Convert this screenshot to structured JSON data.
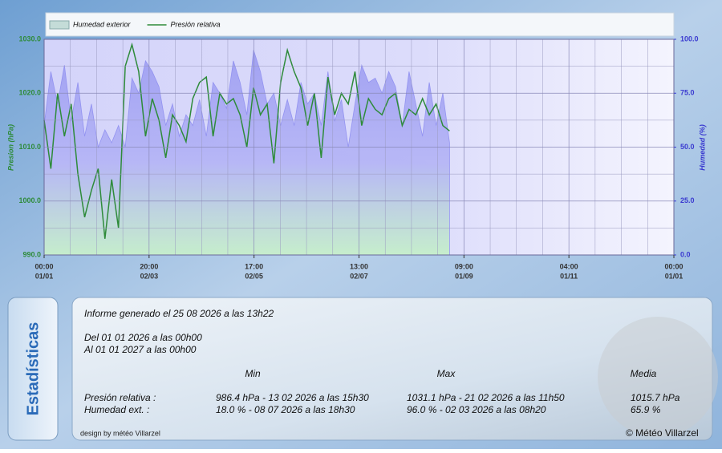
{
  "chart_data": {
    "type": "area-line",
    "x": [
      0,
      94,
      188,
      282,
      376,
      470,
      564,
      658,
      752,
      846,
      940,
      1034,
      1128,
      1222,
      1316,
      1410,
      1504,
      1598,
      1692,
      1786,
      1880,
      1974,
      2068,
      2162,
      2256,
      2350,
      2444,
      2538,
      2632,
      2726,
      2820,
      2914,
      3008,
      3102,
      3196,
      3290,
      3384,
      3478,
      3572,
      3666,
      3760,
      3854,
      3948,
      4042,
      4136,
      4230,
      4324,
      4418,
      4512,
      4606,
      4700,
      4794,
      4888,
      4982,
      5076,
      5170,
      5264,
      5358,
      5452,
      5546,
      5640
    ],
    "series": [
      {
        "name": "Humedad exterior",
        "color": "#8c8cf0",
        "axis": "y2",
        "values": [
          60,
          85,
          70,
          88,
          62,
          80,
          55,
          70,
          50,
          58,
          52,
          60,
          50,
          82,
          75,
          90,
          85,
          78,
          60,
          70,
          55,
          65,
          60,
          72,
          55,
          80,
          75,
          68,
          90,
          80,
          65,
          95,
          85,
          70,
          75,
          60,
          72,
          60,
          80,
          70,
          75,
          60,
          85,
          62,
          72,
          50,
          70,
          88,
          80,
          82,
          75,
          85,
          78,
          60,
          85,
          70,
          55,
          80,
          60,
          75,
          52
        ]
      },
      {
        "name": "Presión relativa",
        "color": "#2e8b3a",
        "values": [
          1015,
          1006,
          1020,
          1012,
          1018,
          1005,
          997,
          1002,
          1006,
          993,
          1004,
          995,
          1025,
          1029,
          1024,
          1012,
          1019,
          1015,
          1008,
          1016,
          1014,
          1011,
          1019,
          1022,
          1023,
          1012,
          1020,
          1018,
          1019,
          1016,
          1010,
          1021,
          1016,
          1018,
          1007,
          1022,
          1028,
          1024,
          1021,
          1014,
          1020,
          1008,
          1023,
          1016,
          1020,
          1018,
          1024,
          1014,
          1019,
          1017,
          1016,
          1019,
          1020,
          1014,
          1017,
          1016,
          1019,
          1016,
          1018,
          1014,
          1013
        ]
      }
    ],
    "y_label": "Presion (hPa)",
    "y2_label": "Humedad (%)",
    "xlim": [
      0,
      8760
    ],
    "xticks": [
      {
        "value": 0,
        "label": [
          "00:00",
          "01/01"
        ]
      },
      {
        "value": 1460,
        "label": [
          "20:00",
          "02/03"
        ]
      },
      {
        "value": 2920,
        "label": [
          "17:00",
          "02/05"
        ]
      },
      {
        "value": 4380,
        "label": [
          "13:00",
          "02/07"
        ]
      },
      {
        "value": 5840,
        "label": [
          "09:00",
          "01/09"
        ]
      },
      {
        "value": 7300,
        "label": [
          "04:00",
          "01/11"
        ]
      },
      {
        "value": 8760,
        "label": [
          "00:00",
          "01/01"
        ]
      }
    ],
    "ylim": [
      990,
      1030
    ],
    "yticks": [
      {
        "value": 990,
        "label": "990.0"
      },
      {
        "value": 1000,
        "label": "1000.0"
      },
      {
        "value": 1010,
        "label": "1010.0"
      },
      {
        "value": 1020,
        "label": "1020.0"
      },
      {
        "value": 1030,
        "label": "1030.0"
      }
    ],
    "y2lim": [
      0,
      100
    ],
    "y2ticks": [
      {
        "value": 0,
        "label": "0.0"
      },
      {
        "value": 25,
        "label": "25.0"
      },
      {
        "value": 50,
        "label": "50.0"
      },
      {
        "value": 75,
        "label": "75.0"
      },
      {
        "value": 100,
        "label": "100.0"
      }
    ],
    "grid": true,
    "legend": "top"
  },
  "stats": {
    "tab": "Estadísticas",
    "generated": "Informe generado el 25 08 2026 a las 13h22",
    "from": "Del 01 01 2026 a las 00h00",
    "to": "Al 01 01 2027 a las 00h00",
    "headers": [
      "Min",
      "Max",
      "Media"
    ],
    "rows": [
      [
        "Presión relativa :",
        "986.4 hPa - 13 02 2026 a las 15h30",
        "1031.1 hPa - 21 02 2026 a las 11h50",
        "1015.7 hPa"
      ],
      [
        "Humedad ext. :",
        "18.0 % - 08 07 2026 a las 18h30",
        "96.0 % - 02 03 2026 a las 08h20",
        "65.9 %"
      ]
    ]
  },
  "footer": {
    "design": "design by météo Villarzel",
    "copyright": "© Météo Villarzel"
  }
}
